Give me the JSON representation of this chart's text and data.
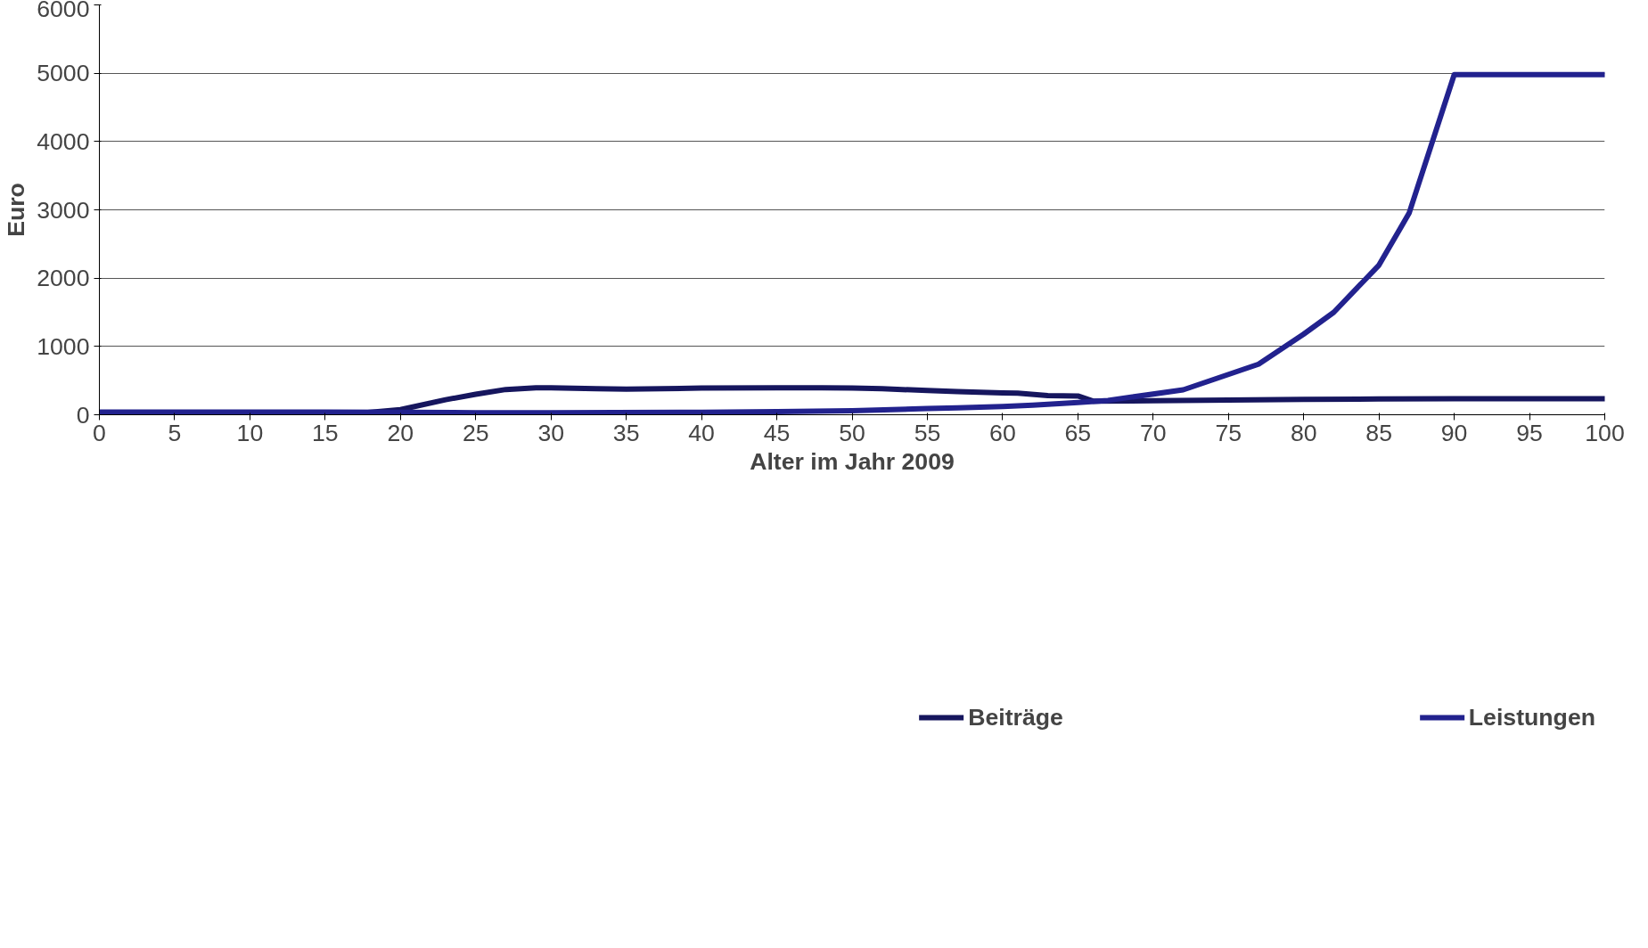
{
  "chart_data": {
    "type": "line",
    "xlabel": "Alter im Jahr 2009",
    "ylabel": "Euro",
    "xlim": [
      0,
      100
    ],
    "xticks": [
      0,
      5,
      10,
      15,
      20,
      25,
      30,
      35,
      40,
      45,
      50,
      55,
      60,
      65,
      70,
      75,
      80,
      85,
      90,
      95,
      100
    ],
    "ylim": [
      0,
      6000
    ],
    "yticks": [
      0,
      1000,
      2000,
      3000,
      4000,
      5000,
      6000
    ],
    "grid": "y",
    "legend": "bottom",
    "marker": "none",
    "line_style": "solid",
    "series": [
      {
        "name": "Beiträge",
        "color": "#16165e",
        "x": [
          0,
          17,
          20,
          23,
          25,
          27,
          29,
          30,
          33,
          35,
          40,
          45,
          48,
          50,
          52,
          55,
          57,
          60,
          61,
          63,
          65,
          66,
          70,
          75,
          80,
          85,
          90,
          100
        ],
        "values": [
          15,
          15,
          75,
          220,
          300,
          370,
          395,
          395,
          380,
          375,
          390,
          395,
          395,
          390,
          380,
          355,
          340,
          320,
          315,
          280,
          275,
          200,
          205,
          215,
          225,
          230,
          235,
          235
        ]
      },
      {
        "name": "Leistungen",
        "color": "#22228e",
        "x": [
          0,
          15,
          20,
          25,
          30,
          40,
          45,
          50,
          55,
          57,
          60,
          62,
          65,
          67,
          72,
          77,
          80,
          82,
          85,
          87,
          90,
          100
        ],
        "values": [
          40,
          40,
          35,
          30,
          30,
          35,
          45,
          60,
          90,
          100,
          120,
          140,
          180,
          210,
          365,
          740,
          1180,
          1500,
          2190,
          2950,
          4980,
          4980
        ]
      }
    ]
  }
}
